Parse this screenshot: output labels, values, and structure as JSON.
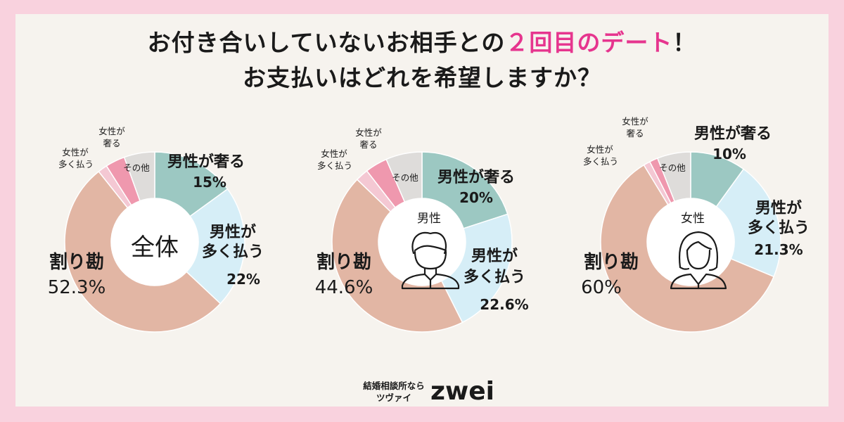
{
  "title": {
    "line1_prefix": "お付き合いしていないお相手との",
    "line1_highlight": "２回目のデート",
    "line1_suffix": "！",
    "line2": "お支払いはどれを希望しますか？"
  },
  "colors": {
    "men_treat": "#9cc8c2",
    "men_pay_more": "#d6eef7",
    "split": "#e2b6a4",
    "women_pay_more": "#f4c8d3",
    "women_treat": "#ef98ae",
    "other": "#dedcda",
    "highlight": "#e6358e",
    "background": "#f6f3ee",
    "border": "#f9d2de"
  },
  "chart_data": [
    {
      "type": "pie",
      "center_label": "全体",
      "slices": [
        {
          "label": "男性が奢る",
          "value": 15,
          "display": "15%"
        },
        {
          "label": "男性が多く払う",
          "value": 22,
          "display": "22%"
        },
        {
          "label": "割り勘",
          "value": 52.3,
          "display": "52.3%"
        },
        {
          "label": "女性が多く払う",
          "value": 1.7,
          "display": ""
        },
        {
          "label": "女性が奢る",
          "value": 3.5,
          "display": ""
        },
        {
          "label": "その他",
          "value": 5.5,
          "display": ""
        }
      ]
    },
    {
      "type": "pie",
      "center_label": "男性",
      "icon": "man-icon",
      "slices": [
        {
          "label": "男性が奢る",
          "value": 20,
          "display": "20%"
        },
        {
          "label": "男性が多く払う",
          "value": 22.6,
          "display": "22.6%"
        },
        {
          "label": "割り勘",
          "value": 44.6,
          "display": "44.6%"
        },
        {
          "label": "女性が多く払う",
          "value": 2.3,
          "display": ""
        },
        {
          "label": "女性が奢る",
          "value": 4.0,
          "display": ""
        },
        {
          "label": "その他",
          "value": 6.5,
          "display": ""
        }
      ]
    },
    {
      "type": "pie",
      "center_label": "女性",
      "icon": "woman-icon",
      "slices": [
        {
          "label": "男性が奢る",
          "value": 10,
          "display": "10%"
        },
        {
          "label": "男性が多く払う",
          "value": 21.3,
          "display": "21.3%"
        },
        {
          "label": "割り勘",
          "value": 60,
          "display": "60%"
        },
        {
          "label": "女性が多く払う",
          "value": 1.2,
          "display": ""
        },
        {
          "label": "女性が奢る",
          "value": 1.5,
          "display": ""
        },
        {
          "label": "その他",
          "value": 6.0,
          "display": ""
        }
      ]
    }
  ],
  "labels": {
    "men_treat": "男性が奢る",
    "men_pay_more_1": "男性が",
    "men_pay_more_2": "多く払う",
    "split": "割り勘",
    "women_pay_more_1": "女性が",
    "women_pay_more_2": "多く払う",
    "women_treat_1": "女性が",
    "women_treat_2": "奢る",
    "other": "その他"
  },
  "footer": {
    "line1": "結婚相談所なら",
    "line2": "ツヴァイ",
    "logo": "zwei"
  }
}
